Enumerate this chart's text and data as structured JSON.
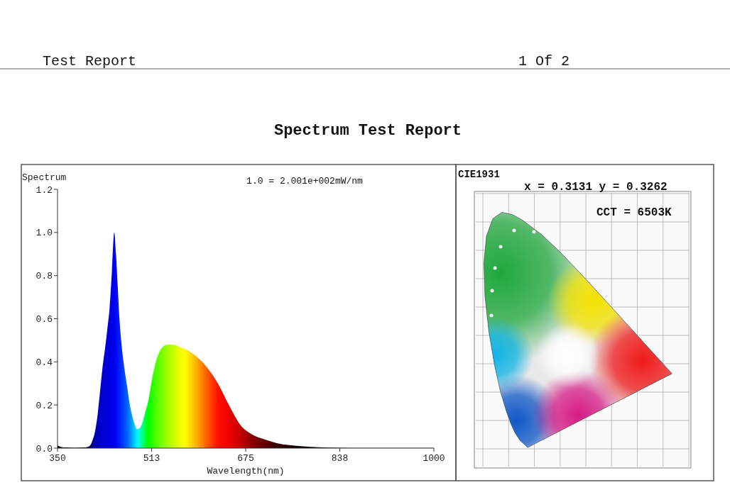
{
  "chart_data": [
    {
      "type": "area",
      "title": "Spectrum Test Report",
      "ylabel": "Spectrum",
      "xlabel": "Wavelength(nm)",
      "annotations": [
        "1.0 = 2.001e+002mW/nm",
        "Test Report",
        "1 Of 2"
      ],
      "xlim": [
        350,
        1000
      ],
      "xticks": [
        350,
        {
          "value": 512.5,
          "label": "513"
        },
        675,
        {
          "value": 837.5,
          "label": "838"
        },
        1000
      ],
      "ylim": [
        0,
        1.2
      ],
      "yticks": [
        {
          "value": 0,
          "label": "0.0"
        },
        0.2,
        0.4,
        0.6,
        0.8,
        {
          "value": 1,
          "label": "1.0"
        },
        1.2
      ],
      "series": [
        {
          "type": "area",
          "x": [
            350,
            355,
            365,
            380,
            395,
            402,
            407,
            411,
            415,
            419,
            423,
            428,
            432,
            436,
            440,
            444,
            448,
            451,
            454,
            457,
            461,
            465,
            470,
            475,
            480,
            484,
            487,
            490,
            494,
            498,
            502,
            507,
            512,
            518,
            525,
            532,
            540,
            549,
            560,
            570,
            580,
            590,
            600,
            615,
            627,
            646,
            668,
            685,
            708,
            730,
            766,
            800,
            838,
            900,
            1000
          ],
          "values": [
            0.012,
            0.006,
            0.003,
            0.002,
            0.003,
            0.006,
            0.015,
            0.04,
            0.08,
            0.15,
            0.25,
            0.38,
            0.46,
            0.55,
            0.65,
            0.82,
            1.0,
            0.9,
            0.75,
            0.6,
            0.47,
            0.38,
            0.29,
            0.2,
            0.14,
            0.105,
            0.089,
            0.09,
            0.1,
            0.13,
            0.17,
            0.22,
            0.3,
            0.38,
            0.44,
            0.47,
            0.48,
            0.48,
            0.47,
            0.46,
            0.445,
            0.425,
            0.4,
            0.35,
            0.3,
            0.2,
            0.1,
            0.065,
            0.04,
            0.022,
            0.01,
            0.004,
            0.002,
            0.001,
            0.001
          ],
          "colors": [
            "#000000",
            "#000000",
            "#000000",
            "#000000",
            "#000000",
            "#100030",
            "#000070",
            "#000090",
            "#0000a8",
            "#0000b8",
            "#0000c8",
            "#0000d0",
            "#0000d4",
            "#0000d8",
            "#0000e0",
            "#0000e8",
            "#0000f0",
            "#0008f8",
            "#0010ff",
            "#0020ff",
            "#0030ff",
            "#0048ff",
            "#0060ff",
            "#0088ff",
            "#00b0ff",
            "#00d8ff",
            "#00f0ff",
            "#00ffe8",
            "#00ffb0",
            "#00ff70",
            "#00ff38",
            "#00ff00",
            "#20ff00",
            "#40ff00",
            "#60ff00",
            "#80ff00",
            "#a0ff00",
            "#c0ff00",
            "#e8ff00",
            "#ffff00",
            "#ffd800",
            "#ffb000",
            "#ff8000",
            "#ff4000",
            "#ff1000",
            "#f00000",
            "#c00000",
            "#900000",
            "#600000",
            "#380000",
            "#100000",
            "#000000",
            "#000000",
            "#000000",
            "#000000"
          ]
        }
      ]
    },
    {
      "type": "other",
      "title": "CIE1931",
      "annotations": [
        "x = 0.3131 y = 0.3262",
        "CCT = 6503K"
      ]
    }
  ]
}
